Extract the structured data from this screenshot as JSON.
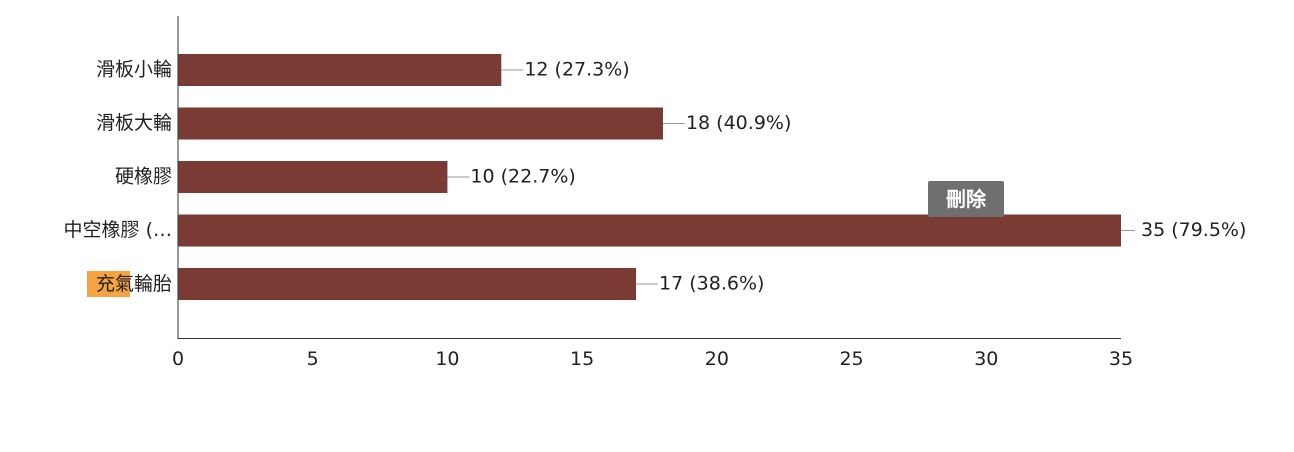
{
  "chart_data": {
    "type": "bar",
    "orientation": "horizontal",
    "categories": [
      "滑板小輪",
      "滑板大輪",
      "硬橡膠",
      "中空橡膠 (…",
      "充氣輪胎"
    ],
    "values": [
      12,
      18,
      10,
      35,
      17
    ],
    "data_labels": [
      "12 (27.3%)",
      "18 (40.9%)",
      "10 (22.7%)",
      "35 (79.5%)",
      "17 (38.6%)"
    ],
    "highlight": {
      "category_index": 4,
      "text": "充氣",
      "color": "#f5a340"
    },
    "xlim": [
      0,
      35
    ],
    "x_ticks": [
      0,
      5,
      10,
      15,
      20,
      25,
      30,
      35
    ],
    "bar_color": "#7b3b35",
    "grid": false,
    "legend": "none"
  },
  "delete_button": {
    "label": "刪除"
  }
}
